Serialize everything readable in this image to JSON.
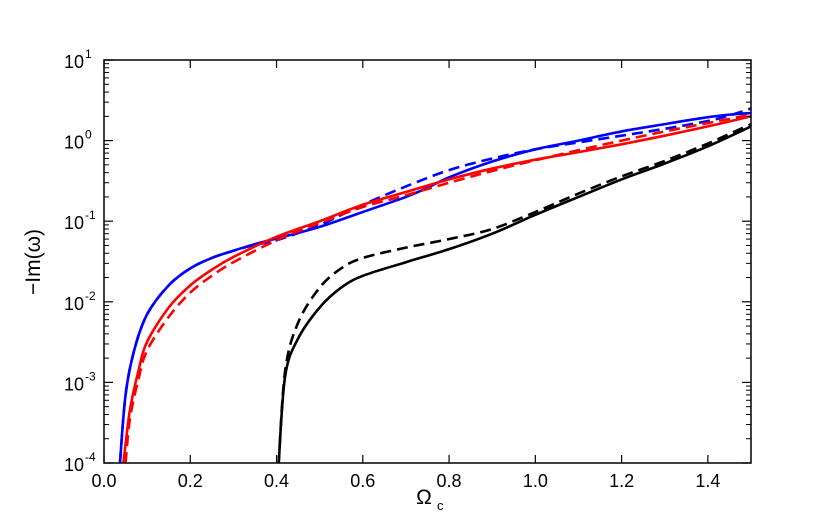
{
  "chart_data": {
    "type": "line",
    "title": "",
    "xlabel": "Ω",
    "xlabel_subscript": "c",
    "ylabel": "−Im(ω)",
    "xlim": [
      0.0,
      1.5
    ],
    "ylim": [
      0.0001,
      10
    ],
    "yscale": "log",
    "grid": false,
    "legend": "none",
    "x_ticks": [
      "0.0",
      "0.2",
      "0.4",
      "0.6",
      "0.8",
      "1.0",
      "1.2",
      "1.4"
    ],
    "y_ticks": [
      {
        "base": "10",
        "exp": "-4"
      },
      {
        "base": "10",
        "exp": "-3"
      },
      {
        "base": "10",
        "exp": "-2"
      },
      {
        "base": "10",
        "exp": "-1"
      },
      {
        "base": "10",
        "exp": "0"
      },
      {
        "base": "10",
        "exp": "1"
      }
    ],
    "series": [
      {
        "color": "#0000ff",
        "style": "solid",
        "x": [
          0.037,
          0.05,
          0.07,
          0.1,
          0.15,
          0.2,
          0.25,
          0.3,
          0.35,
          0.4,
          0.5,
          0.6,
          0.7,
          0.75,
          0.8,
          0.9,
          1.0,
          1.1,
          1.2,
          1.3,
          1.4,
          1.45,
          1.5
        ],
        "y": [
          0.0001,
          0.0007,
          0.0025,
          0.007,
          0.016,
          0.026,
          0.035,
          0.043,
          0.052,
          0.061,
          0.085,
          0.13,
          0.2,
          0.26,
          0.35,
          0.55,
          0.78,
          1.0,
          1.3,
          1.6,
          1.95,
          2.1,
          2.2
        ]
      },
      {
        "color": "#0000ff",
        "style": "dashed",
        "x": [
          0.037,
          0.05,
          0.07,
          0.1,
          0.15,
          0.2,
          0.25,
          0.3,
          0.35,
          0.4,
          0.5,
          0.6,
          0.7,
          0.8,
          0.9,
          1.0,
          1.1,
          1.2,
          1.3,
          1.4,
          1.45,
          1.5
        ],
        "y": [
          0.0001,
          0.0007,
          0.0025,
          0.007,
          0.016,
          0.026,
          0.035,
          0.043,
          0.051,
          0.058,
          0.09,
          0.16,
          0.27,
          0.43,
          0.6,
          0.78,
          0.95,
          1.15,
          1.4,
          1.75,
          2.05,
          2.5
        ]
      },
      {
        "color": "#ff0000",
        "style": "solid",
        "x": [
          0.045,
          0.06,
          0.08,
          0.1,
          0.15,
          0.2,
          0.25,
          0.3,
          0.4,
          0.5,
          0.6,
          0.7,
          0.8,
          0.9,
          1.0,
          1.1,
          1.2,
          1.3,
          1.4,
          1.5
        ],
        "y": [
          0.0001,
          0.00045,
          0.0014,
          0.0032,
          0.0085,
          0.016,
          0.025,
          0.036,
          0.064,
          0.1,
          0.16,
          0.23,
          0.33,
          0.45,
          0.58,
          0.72,
          0.9,
          1.15,
          1.5,
          2.0
        ]
      },
      {
        "color": "#ff0000",
        "style": "dashed",
        "x": [
          0.05,
          0.06,
          0.08,
          0.1,
          0.15,
          0.2,
          0.25,
          0.3,
          0.4,
          0.5,
          0.6,
          0.7,
          0.8,
          0.9,
          1.0,
          1.1,
          1.2,
          1.3,
          1.4,
          1.5
        ],
        "y": [
          0.0001,
          0.00035,
          0.0011,
          0.0025,
          0.0065,
          0.013,
          0.021,
          0.031,
          0.058,
          0.095,
          0.15,
          0.21,
          0.3,
          0.42,
          0.57,
          0.76,
          1.0,
          1.3,
          1.65,
          2.1
        ]
      },
      {
        "color": "#000000",
        "style": "solid",
        "x": [
          0.405,
          0.42,
          0.45,
          0.5,
          0.55,
          0.6,
          0.7,
          0.8,
          0.9,
          1.0,
          1.1,
          1.2,
          1.3,
          1.4,
          1.5
        ],
        "y": [
          0.0001,
          0.0012,
          0.0035,
          0.0085,
          0.015,
          0.021,
          0.031,
          0.045,
          0.07,
          0.12,
          0.2,
          0.33,
          0.52,
          0.85,
          1.5
        ]
      },
      {
        "color": "#000000",
        "style": "dashed",
        "x": [
          0.405,
          0.42,
          0.45,
          0.5,
          0.55,
          0.6,
          0.7,
          0.8,
          0.9,
          1.0,
          1.1,
          1.2,
          1.3,
          1.4,
          1.5
        ],
        "y": [
          0.0001,
          0.0014,
          0.0055,
          0.015,
          0.026,
          0.035,
          0.047,
          0.06,
          0.08,
          0.13,
          0.22,
          0.36,
          0.56,
          0.92,
          1.6
        ]
      }
    ]
  }
}
